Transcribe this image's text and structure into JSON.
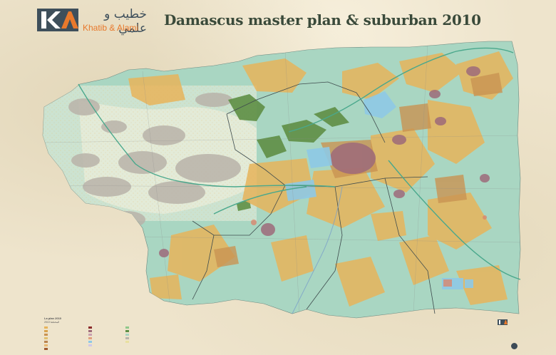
{
  "title": "Damascus master plan & suburban 2010",
  "logo": {
    "arabic": "خطيب و علمي",
    "english": "Khatib & Alami",
    "mark_color": "#e8792c",
    "mark_dark": "#3e4f5b"
  },
  "legend": {
    "title": "La plan 2010",
    "subtitle": "2010 المخطط"
  },
  "colors": {
    "parchment": "#eee4cc",
    "agricultural": "#a9d6c2",
    "residential": "#e7b45b",
    "residential_dense": "#c99352",
    "urban_core": "#9d6a7a",
    "mountains": "#b9b3aa",
    "green_park": "#5f8f45",
    "water_public": "#8ec9e6",
    "boundary": "#3e4b4d",
    "ring_road": "#4aa88c"
  },
  "icons": [
    "logo-mark-icon",
    "info-icon"
  ]
}
